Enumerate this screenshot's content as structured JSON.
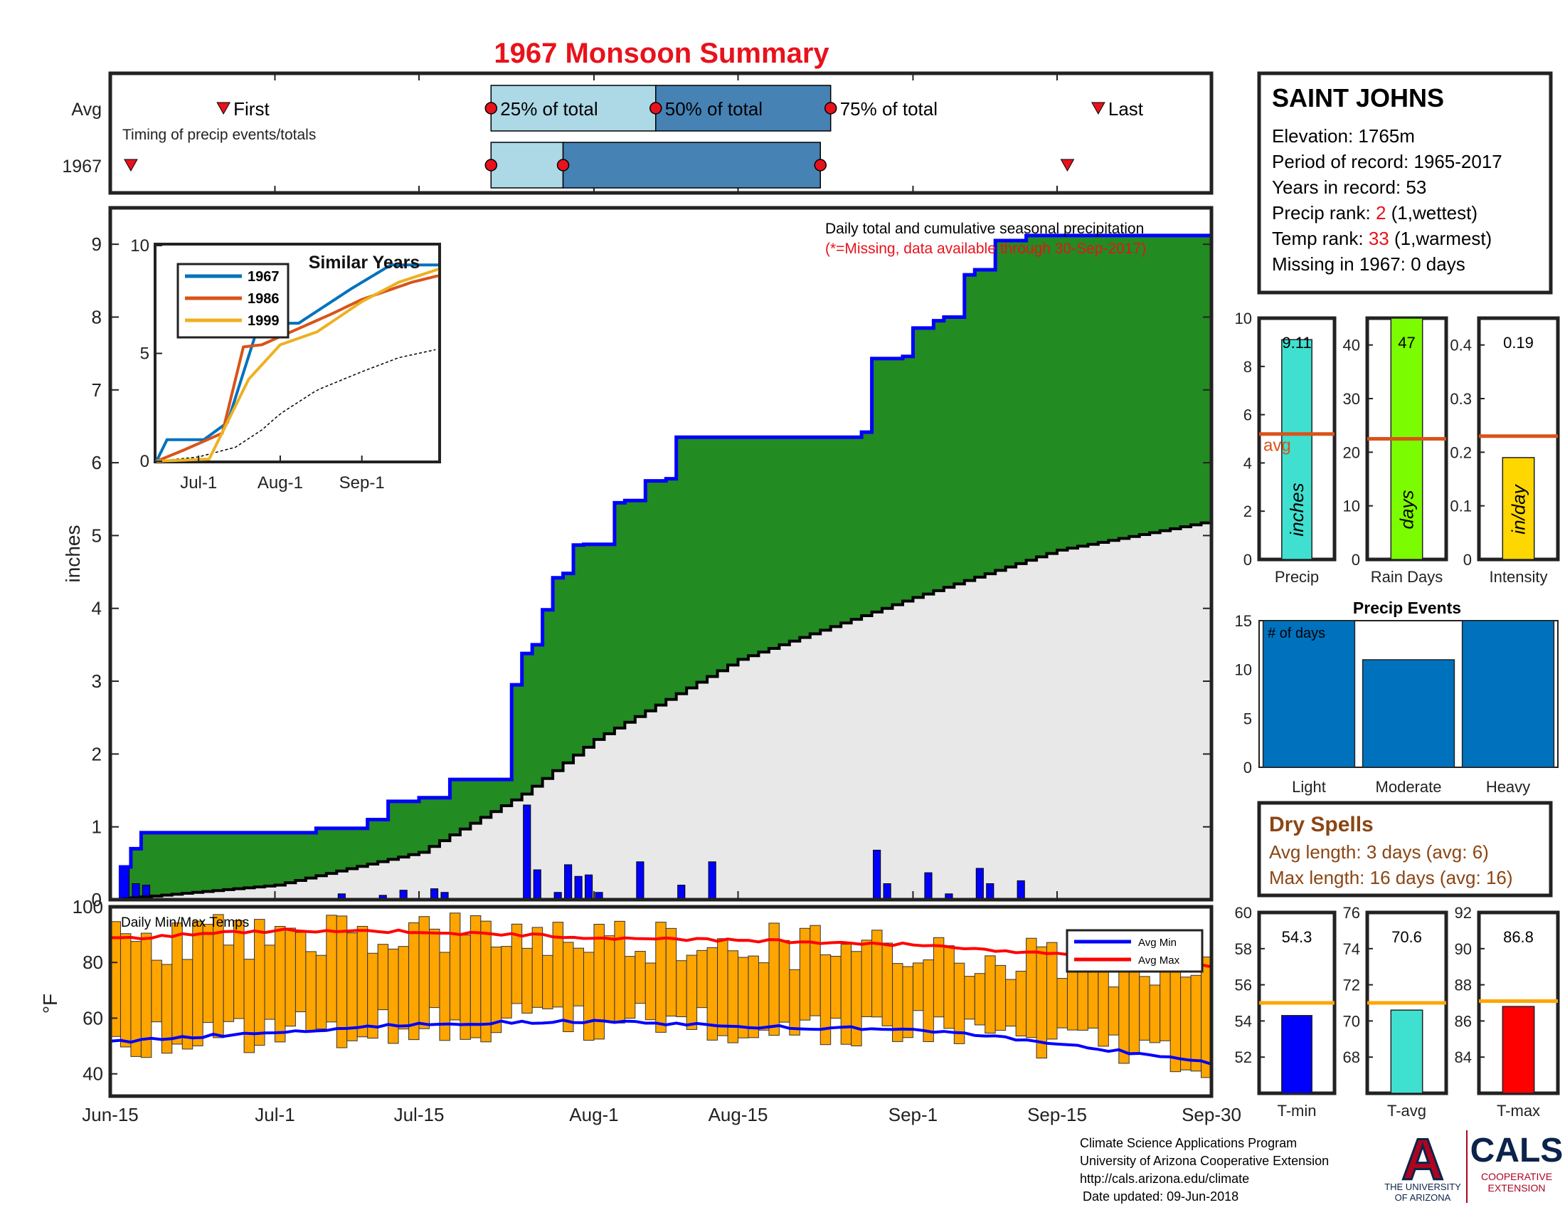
{
  "title": "1967 Monsoon Summary",
  "timing": {
    "row_avg": "Avg",
    "row_year": "1967",
    "caption": "Timing of precip events/totals",
    "first": "First",
    "last": "Last",
    "q25": "25% of total",
    "q50": "50% of total",
    "q75": "75% of total",
    "avg": {
      "first": "Jun-26",
      "q25": "Jul-22",
      "q50": "Aug-7",
      "q75": "Aug-24",
      "last": "Sep-19"
    },
    "year": {
      "first": "Jun-17",
      "q25": "Jul-22",
      "q50": "Jul-29",
      "q75": "Aug-23",
      "last": "Sep-16"
    }
  },
  "station": {
    "name": "SAINT JOHNS",
    "elevation": "Elevation: 1765m",
    "period": "Period of record: 1965-2017",
    "years": "Years in record: 53",
    "precip_rank_label": "Precip rank: ",
    "precip_rank": "2",
    "precip_rank_note": " (1,wettest)",
    "temp_rank_label": "Temp rank: ",
    "temp_rank": "33",
    "temp_rank_note": " (1,warmest)",
    "missing": "Missing in 1967: 0 days"
  },
  "main": {
    "note1": "Daily total and cumulative seasonal precipitation",
    "note2": "(*=Missing, data available through 30-Sep-2017)",
    "ylabel": "inches",
    "yticks": [
      "0",
      "1",
      "2",
      "3",
      "4",
      "5",
      "6",
      "7",
      "8",
      "9"
    ],
    "xticks": [
      "Jun-15",
      "Jul-1",
      "Jul-15",
      "Aug-1",
      "Aug-15",
      "Sep-1",
      "Sep-15",
      "Sep-30"
    ]
  },
  "similar": {
    "title": "Similar Years",
    "yticks": [
      "0",
      "5",
      "10"
    ],
    "xticks": [
      "Jul-1",
      "Aug-1",
      "Sep-1"
    ],
    "legend": [
      "1967",
      "1986",
      "1999"
    ],
    "colors": [
      "#0072BD",
      "#D95319",
      "#EDB120"
    ]
  },
  "temps": {
    "title": "Daily Min/Max Temps",
    "ylabel": "°F",
    "yticks": [
      "40",
      "60",
      "80",
      "100"
    ],
    "legend": [
      "Avg Min",
      "Avg Max"
    ]
  },
  "mini": {
    "precip": {
      "label": "Precip",
      "unit": "inches",
      "value": "9.11",
      "avg_label": "avg",
      "yticks": [
        "0",
        "2",
        "4",
        "6",
        "8",
        "10"
      ],
      "avg": 5.2
    },
    "raindays": {
      "label": "Rain Days",
      "unit": "days",
      "value": "47",
      "yticks": [
        "0",
        "10",
        "20",
        "30",
        "40"
      ],
      "avg": 22.5
    },
    "intensity": {
      "label": "Intensity",
      "unit": "in/day",
      "value": "0.19",
      "yticks": [
        "0",
        "0.1",
        "0.2",
        "0.3",
        "0.4"
      ],
      "avg": 0.23
    }
  },
  "events": {
    "title": "Precip Events",
    "ylabel_note": "# of days",
    "yticks": [
      "0",
      "5",
      "10",
      "15"
    ],
    "categories": [
      "Light",
      "Moderate",
      "Heavy"
    ],
    "values": [
      15,
      11,
      15
    ]
  },
  "dry": {
    "title": "Dry Spells",
    "avg": "Avg length: 3 days (avg: 6)",
    "max": "Max length: 16 days (avg: 16)"
  },
  "tbars": {
    "tmin": {
      "label": "T-min",
      "value": "54.3",
      "yticks": [
        "52",
        "54",
        "56",
        "58",
        "60"
      ],
      "avg": 55.0
    },
    "tavg": {
      "label": "T-avg",
      "value": "70.6",
      "yticks": [
        "68",
        "70",
        "72",
        "74",
        "76"
      ],
      "avg": 71.0
    },
    "tmax": {
      "label": "T-max",
      "value": "86.8",
      "yticks": [
        "84",
        "86",
        "88",
        "90",
        "92"
      ],
      "avg": 87.1
    }
  },
  "footer": {
    "line1": "Climate Science Applications Program",
    "line2": "University of Arizona Cooperative Extension",
    "line3": "http://cals.arizona.edu/climate",
    "line4": "Date updated: 09-Jun-2018",
    "ua_letter": "A",
    "ua_line1": "THE UNIVERSITY",
    "ua_line2": "OF ARIZONA",
    "cals": "CALS",
    "cals_line1": "COOPERATIVE",
    "cals_line2": "EXTENSION"
  },
  "colors": {
    "title_red": "#E8121C",
    "green": "#228B22",
    "blue_line": "#0000FF",
    "avg_fill": "#E8E8E8",
    "bar_orange": "#FFA500",
    "dry_brown": "#8B4513",
    "avg_orange": "#D95319"
  },
  "chart_data": [
    {
      "type": "area",
      "title": "Daily total and cumulative seasonal precipitation",
      "ylabel": "inches",
      "ylim": [
        0,
        9.5
      ],
      "x_range": [
        "Jun-15",
        "Sep-30"
      ],
      "series": [
        {
          "name": "1967",
          "x": [
            "Jun-15",
            "Jun-16",
            "Jun-17",
            "Jun-18",
            "Jul-5",
            "Jul-10",
            "Jul-12",
            "Jul-15",
            "Jul-18",
            "Jul-24",
            "Jul-25",
            "Jul-26",
            "Jul-27",
            "Jul-28",
            "Jul-29",
            "Jul-30",
            "Jul-31",
            "Aug-3",
            "Aug-4",
            "Aug-6",
            "Aug-8",
            "Aug-9",
            "Aug-10",
            "Aug-27",
            "Aug-28",
            "Aug-31",
            "Sep-1",
            "Sep-3",
            "Sep-4",
            "Sep-6",
            "Sep-7",
            "Sep-9",
            "Sep-12",
            "Sep-30"
          ],
          "values": [
            0,
            0.45,
            0.7,
            0.92,
            0.98,
            1.1,
            1.35,
            1.4,
            1.65,
            2.95,
            3.38,
            3.5,
            3.98,
            4.42,
            4.48,
            4.87,
            4.88,
            5.45,
            5.48,
            5.75,
            5.78,
            6.35,
            6.35,
            6.42,
            7.43,
            7.46,
            7.85,
            7.95,
            8.0,
            8.58,
            8.65,
            9.05,
            9.12,
            9.12
          ]
        },
        {
          "name": "Avg",
          "x": [
            "Jun-15",
            "Jul-1",
            "Jul-15",
            "Jul-25",
            "Aug-1",
            "Aug-15",
            "Sep-1",
            "Sep-15",
            "Sep-30"
          ],
          "values": [
            0,
            0.2,
            0.65,
            1.45,
            2.2,
            3.3,
            4.15,
            4.8,
            5.2
          ]
        }
      ],
      "daily_precip": {
        "x": [
          "Jun-16",
          "Jun-17",
          "Jun-18",
          "Jul-7",
          "Jul-11",
          "Jul-13",
          "Jul-16",
          "Jul-17",
          "Jul-25",
          "Jul-26",
          "Jul-28",
          "Jul-29",
          "Jul-30",
          "Jul-31",
          "Aug-1",
          "Aug-5",
          "Aug-9",
          "Aug-12",
          "Aug-28",
          "Aug-29",
          "Sep-2",
          "Sep-4",
          "Sep-7",
          "Sep-8",
          "Sep-11"
        ],
        "values": [
          0.45,
          0.22,
          0.2,
          0.08,
          0.06,
          0.13,
          0.15,
          0.1,
          1.3,
          0.41,
          0.1,
          0.48,
          0.32,
          0.34,
          0.1,
          0.52,
          0.2,
          0.52,
          0.68,
          0.22,
          0.37,
          0.08,
          0.43,
          0.22,
          0.26
        ]
      }
    },
    {
      "type": "line",
      "title": "Similar Years",
      "ylim": [
        0,
        10
      ],
      "series": [
        {
          "name": "1967",
          "x": [
            "Jun-15",
            "Jun-19",
            "Jul-3",
            "Jul-12",
            "Jul-24",
            "Aug-8",
            "Aug-28",
            "Sep-12",
            "Sep-30"
          ],
          "values": [
            0,
            1,
            1,
            1.8,
            6.4,
            6.4,
            8.0,
            9.1,
            9.1
          ]
        },
        {
          "name": "1986",
          "x": [
            "Jun-15",
            "Jun-25",
            "Jul-10",
            "Jul-18",
            "Jul-25",
            "Aug-20",
            "Sep-1",
            "Sep-20",
            "Sep-30"
          ],
          "values": [
            0,
            0.5,
            1.3,
            5.3,
            5.4,
            6.8,
            7.5,
            8.3,
            8.6
          ]
        },
        {
          "name": "1999",
          "x": [
            "Jun-15",
            "Jul-5",
            "Jul-20",
            "Aug-1",
            "Aug-15",
            "Sep-1",
            "Sep-15",
            "Sep-30"
          ],
          "values": [
            0,
            0.1,
            3.8,
            5.4,
            6.0,
            7.4,
            8.3,
            8.9
          ]
        }
      ]
    },
    {
      "type": "bar",
      "title": "Daily Min/Max Temps",
      "ylabel": "°F",
      "ylim": [
        32,
        100
      ],
      "avg_min": {
        "x": [
          "Jun-15",
          "Jul-1",
          "Jul-15",
          "Aug-1",
          "Aug-15",
          "Sep-1",
          "Sep-15",
          "Sep-30"
        ],
        "values": [
          51.5,
          55,
          58,
          59,
          57,
          56,
          51,
          44
        ]
      },
      "avg_max": {
        "x": [
          "Jun-15",
          "Jul-1",
          "Jul-15",
          "Aug-1",
          "Aug-15",
          "Sep-1",
          "Sep-15",
          "Sep-30"
        ],
        "values": [
          88.5,
          91.5,
          91,
          89,
          88,
          86.5,
          83,
          79
        ]
      }
    },
    {
      "type": "bar",
      "categories": [
        "Precip"
      ],
      "values": [
        9.11
      ],
      "avg": 5.2,
      "ylim": [
        0,
        10
      ]
    },
    {
      "type": "bar",
      "categories": [
        "Rain Days"
      ],
      "values": [
        47
      ],
      "avg": 22.5,
      "ylim": [
        0,
        45
      ]
    },
    {
      "type": "bar",
      "categories": [
        "Intensity"
      ],
      "values": [
        0.19
      ],
      "avg": 0.23,
      "ylim": [
        0,
        0.45
      ]
    },
    {
      "type": "bar",
      "title": "Precip Events",
      "categories": [
        "Light",
        "Moderate",
        "Heavy"
      ],
      "values": [
        15,
        11,
        15
      ],
      "ylim": [
        0,
        15
      ]
    },
    {
      "type": "bar",
      "categories": [
        "T-min"
      ],
      "values": [
        54.3
      ],
      "avg": 55.0,
      "ylim": [
        50,
        60
      ]
    },
    {
      "type": "bar",
      "categories": [
        "T-avg"
      ],
      "values": [
        70.6
      ],
      "avg": 71.0,
      "ylim": [
        66,
        76
      ]
    },
    {
      "type": "bar",
      "categories": [
        "T-max"
      ],
      "values": [
        86.8
      ],
      "avg": 87.1,
      "ylim": [
        82,
        92
      ]
    }
  ]
}
